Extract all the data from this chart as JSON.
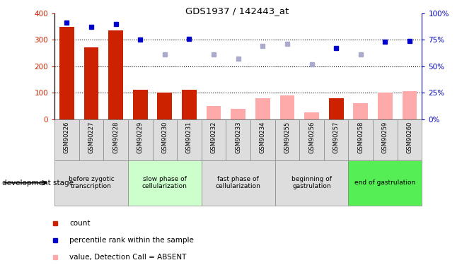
{
  "title": "GDS1937 / 142443_at",
  "samples": [
    "GSM90226",
    "GSM90227",
    "GSM90228",
    "GSM90229",
    "GSM90230",
    "GSM90231",
    "GSM90232",
    "GSM90233",
    "GSM90234",
    "GSM90255",
    "GSM90256",
    "GSM90257",
    "GSM90258",
    "GSM90259",
    "GSM90260"
  ],
  "bar_values": [
    350,
    270,
    335,
    110,
    100,
    110,
    null,
    null,
    null,
    null,
    null,
    78,
    null,
    null,
    null
  ],
  "bar_absent_values": [
    null,
    null,
    null,
    null,
    null,
    null,
    50,
    40,
    80,
    90,
    25,
    null,
    60,
    100,
    105
  ],
  "rank_present": [
    91,
    87,
    90,
    75,
    null,
    76,
    null,
    null,
    null,
    null,
    null,
    67,
    null,
    73,
    74
  ],
  "rank_absent": [
    null,
    null,
    null,
    null,
    61,
    null,
    61,
    57,
    69,
    71,
    52,
    null,
    61,
    null,
    null
  ],
  "bar_color_present": "#cc2200",
  "bar_color_absent": "#ffaaaa",
  "rank_color_present": "#0000cc",
  "rank_color_absent": "#aaaacc",
  "ylim_left": [
    0,
    400
  ],
  "ylim_right": [
    0,
    100
  ],
  "yticks_left": [
    0,
    100,
    200,
    300,
    400
  ],
  "yticks_right": [
    0,
    25,
    50,
    75,
    100
  ],
  "yticklabels_right": [
    "0%",
    "25%",
    "50%",
    "75%",
    "100%"
  ],
  "stage_groups": [
    {
      "label": "before zygotic\ntranscription",
      "samples": [
        "GSM90226",
        "GSM90227",
        "GSM90228"
      ],
      "color": "#dddddd"
    },
    {
      "label": "slow phase of\ncellularization",
      "samples": [
        "GSM90229",
        "GSM90230",
        "GSM90231"
      ],
      "color": "#ccffcc"
    },
    {
      "label": "fast phase of\ncellularization",
      "samples": [
        "GSM90232",
        "GSM90233",
        "GSM90234"
      ],
      "color": "#dddddd"
    },
    {
      "label": "beginning of\ngastrulation",
      "samples": [
        "GSM90255",
        "GSM90256",
        "GSM90257"
      ],
      "color": "#dddddd"
    },
    {
      "label": "end of gastrulation",
      "samples": [
        "GSM90258",
        "GSM90259",
        "GSM90260"
      ],
      "color": "#55ee55"
    }
  ],
  "background_color": "#ffffff"
}
